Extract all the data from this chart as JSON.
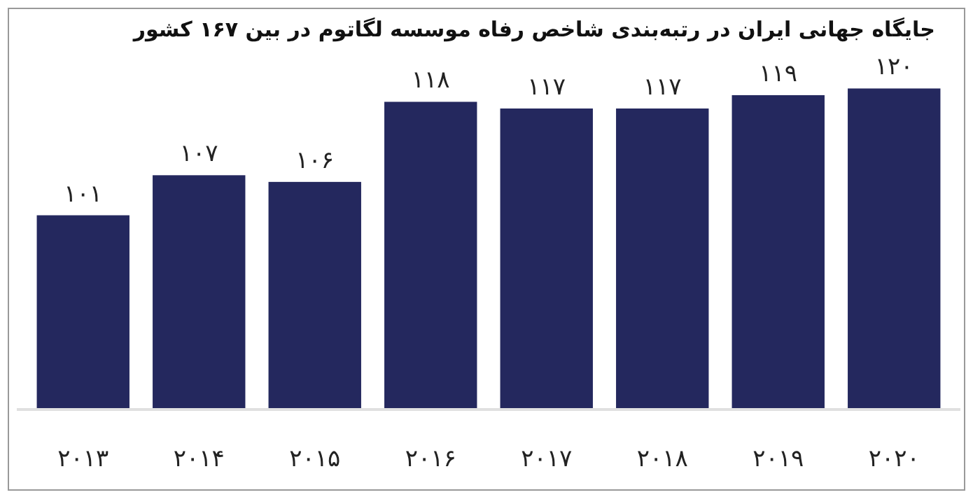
{
  "chart_data": {
    "type": "bar",
    "title": "جایگاه جهانی ایران در رتبه‌بندی شاخص رفاه موسسه لگاتوم در بین ۱۶۷ کشور",
    "categories": [
      "۲۰۱۳",
      "۲۰۱۴",
      "۲۰۱۵",
      "۲۰۱۶",
      "۲۰۱۷",
      "۲۰۱۸",
      "۲۰۱۹",
      "۲۰۲۰"
    ],
    "values": [
      101,
      107,
      106,
      118,
      117,
      117,
      119,
      120
    ],
    "value_labels": [
      "۱۰۱",
      "۱۰۷",
      "۱۰۶",
      "۱۱۸",
      "۱۱۷",
      "۱۱۷",
      "۱۱۹",
      "۱۲۰"
    ],
    "color": "#24285e",
    "ylim": [
      72,
      132
    ],
    "tick_labels": "x"
  }
}
